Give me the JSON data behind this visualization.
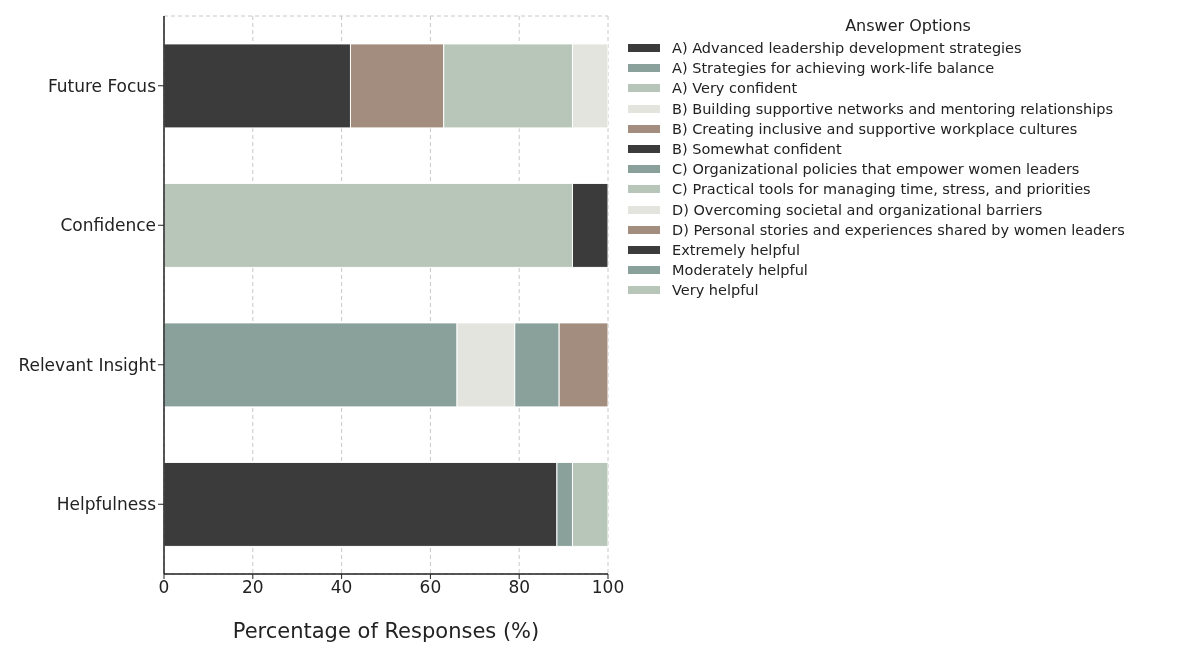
{
  "chart_data": {
    "type": "bar",
    "orientation": "horizontal",
    "stacked": true,
    "xlabel": "Percentage of Responses (%)",
    "legend_title": "Answer Options",
    "legend": "right",
    "grid": true,
    "categories": [
      "Future Focus",
      "Confidence",
      "Relevant Insight",
      "Helpfulness"
    ],
    "xlim": [
      0,
      100
    ],
    "xticks": [
      0,
      20,
      40,
      60,
      80,
      100
    ],
    "series": [
      {
        "name": "A) Advanced leadership development strategies",
        "color": "#3b3b3b",
        "values": [
          42,
          null,
          null,
          null
        ]
      },
      {
        "name": "A) Strategies for achieving work-life balance",
        "color": "#89a09b",
        "values": [
          null,
          null,
          66,
          null
        ]
      },
      {
        "name": "A) Very confident",
        "color": "#b8c5b9",
        "values": [
          null,
          92,
          null,
          null
        ]
      },
      {
        "name": "B) Building supportive networks and mentoring relationships",
        "color": "#e3e4dd",
        "values": [
          null,
          null,
          13,
          null
        ]
      },
      {
        "name": "B) Creating inclusive and supportive workplace cultures",
        "color": "#a38d7e",
        "values": [
          21,
          null,
          null,
          null
        ]
      },
      {
        "name": "B) Somewhat confident",
        "color": "#3b3b3b",
        "values": [
          null,
          8,
          null,
          null
        ]
      },
      {
        "name": "C) Organizational policies that empower women leaders",
        "color": "#89a09b",
        "values": [
          null,
          null,
          10,
          null
        ]
      },
      {
        "name": "C) Practical tools for managing time, stress, and priorities",
        "color": "#b8c5b9",
        "values": [
          29,
          null,
          null,
          null
        ]
      },
      {
        "name": "D) Overcoming societal and organizational barriers",
        "color": "#e3e4dd",
        "values": [
          8,
          null,
          null,
          null
        ]
      },
      {
        "name": "D) Personal stories and experiences shared by women leaders",
        "color": "#a38d7e",
        "values": [
          null,
          null,
          11,
          null
        ]
      },
      {
        "name": "Extremely helpful",
        "color": "#3b3b3b",
        "values": [
          null,
          null,
          null,
          88.5
        ]
      },
      {
        "name": "Moderately helpful",
        "color": "#89a09b",
        "values": [
          null,
          null,
          null,
          3.5
        ]
      },
      {
        "name": "Very helpful",
        "color": "#b8c5b9",
        "values": [
          null,
          null,
          null,
          8
        ]
      }
    ]
  }
}
